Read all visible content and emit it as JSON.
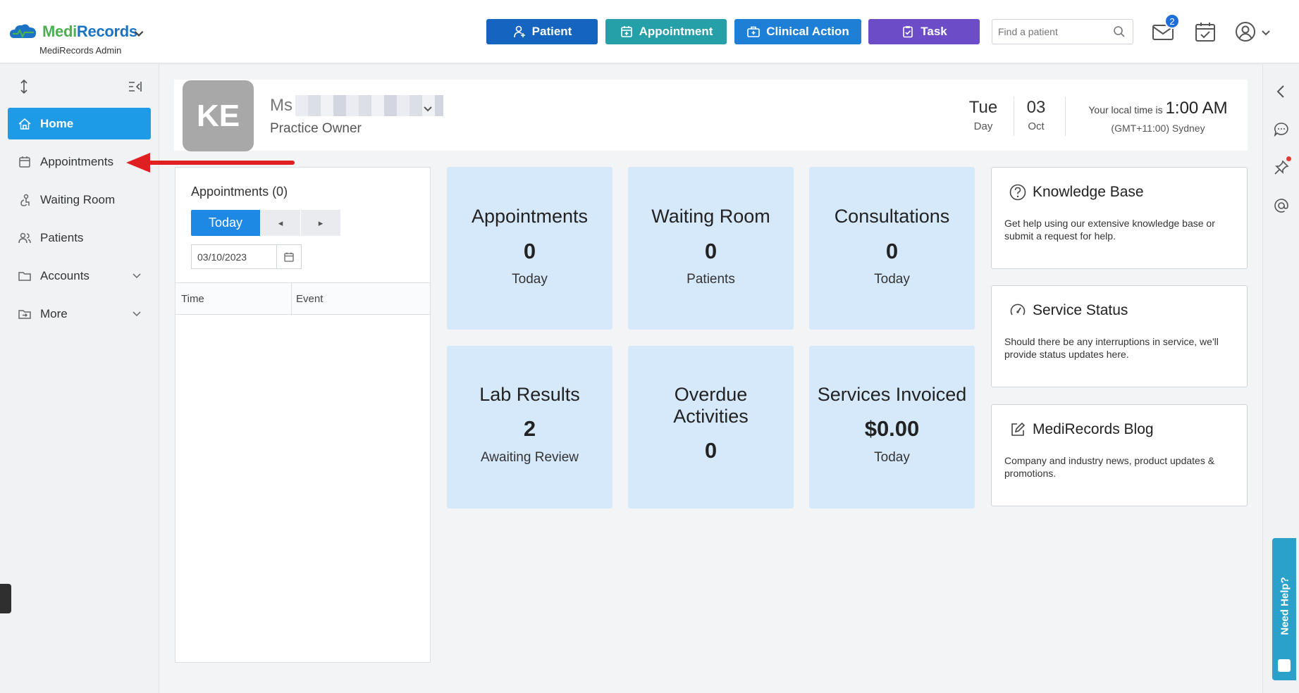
{
  "header": {
    "logo_medi": "Medi",
    "logo_records": "Records",
    "logo_subtitle": "MediRecords Admin",
    "buttons": {
      "patient": "Patient",
      "appointment": "Appointment",
      "clinical_action": "Clinical Action",
      "task": "Task"
    },
    "search_placeholder": "Find a patient",
    "mail_badge": "2"
  },
  "sidebar": {
    "items": [
      {
        "label": "Home",
        "icon": "home-icon",
        "active": true
      },
      {
        "label": "Appointments",
        "icon": "calendar-icon"
      },
      {
        "label": "Waiting Room",
        "icon": "waiting-room-icon"
      },
      {
        "label": "Patients",
        "icon": "patients-icon"
      },
      {
        "label": "Accounts",
        "icon": "folder-icon",
        "expandable": true
      },
      {
        "label": "More",
        "icon": "folder-icon",
        "expandable": true
      }
    ]
  },
  "profile": {
    "initials": "KE",
    "name_prefix": "Ms",
    "role": "Practice Owner",
    "day_name": "Tue",
    "day_label": "Day",
    "day_num": "03",
    "month": "Oct",
    "local_time_label": "Your local time is",
    "local_time": "1:00 AM",
    "timezone": "(GMT+11:00) Sydney"
  },
  "appointments_panel": {
    "title": "Appointments (0)",
    "today_label": "Today",
    "prev_label": "◂",
    "next_label": "▸",
    "date_value": "03/10/2023",
    "columns": [
      "Time",
      "Event"
    ]
  },
  "tiles": [
    {
      "title": "Appointments",
      "value": "0",
      "sub": "Today"
    },
    {
      "title": "Waiting Room",
      "value": "0",
      "sub": "Patients"
    },
    {
      "title": "Consultations",
      "value": "0",
      "sub": "Today"
    },
    {
      "title": "Lab Results",
      "value": "2",
      "sub": "Awaiting Review"
    },
    {
      "title": "Overdue Activities",
      "value": "0",
      "sub": ""
    },
    {
      "title": "Services Invoiced",
      "value": "$0.00",
      "sub": "Today"
    }
  ],
  "info_cards": [
    {
      "title": "Knowledge Base",
      "body": "Get help using our extensive knowledge base or submit a request for help.",
      "icon": "question-icon"
    },
    {
      "title": "Service Status",
      "body": "Should there be any interruptions in service, we'll provide status updates here.",
      "icon": "gauge-icon"
    },
    {
      "title": "MediRecords Blog",
      "body": "Company and industry news, product updates & promotions.",
      "icon": "edit-icon"
    }
  ],
  "help_tab": "Need Help?",
  "colors": {
    "accent": "#1e9be6",
    "tile_bg": "#d6e9fb",
    "patient_btn": "#1565c0",
    "appointment_btn": "#26a0a8",
    "clinical_btn": "#1e7fd6",
    "task_btn": "#6c4cc7",
    "annotation_arrow": "#e02020"
  }
}
